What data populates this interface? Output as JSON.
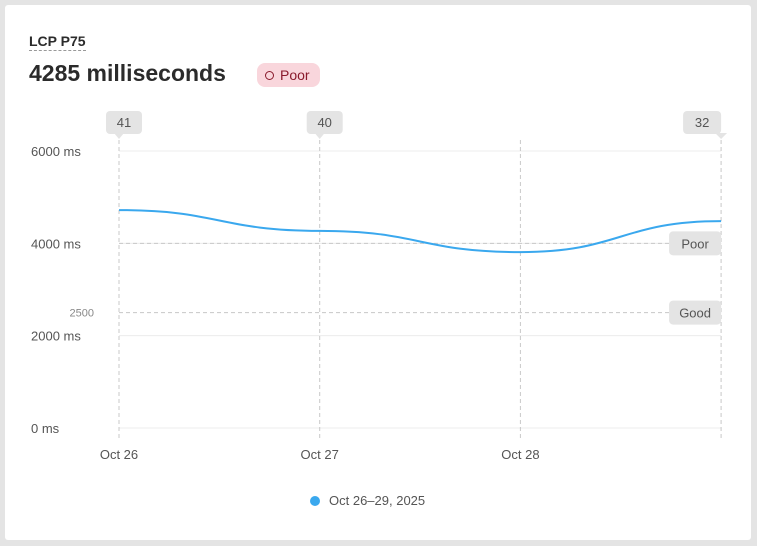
{
  "header": {
    "metric_label": "LCP P75",
    "value_text": "4285 milliseconds",
    "status_badge": "Poor",
    "status_color": "#8a1a2c",
    "status_bg": "#f9d6dc"
  },
  "chart_data": {
    "type": "line",
    "x": [
      "Oct 26",
      "Oct 27",
      "Oct 28",
      "Oct 29"
    ],
    "x_tick_labels": [
      "Oct 26",
      "Oct 27",
      "Oct 28"
    ],
    "series": [
      {
        "name": "Oct 26–29, 2025",
        "values": [
          4720,
          4270,
          3810,
          4480
        ],
        "color": "#3aa8ee"
      }
    ],
    "ylim": [
      0,
      6000
    ],
    "y_ticks": [
      0,
      2000,
      4000,
      6000
    ],
    "y_tick_labels": [
      "0 ms",
      "2000 ms",
      "4000 ms",
      "6000 ms"
    ],
    "grid": true,
    "thresholds": [
      {
        "label": "Poor",
        "value": 4000
      },
      {
        "label": "Good",
        "value": 2500,
        "tick_label": "2500"
      }
    ],
    "sample_counts": [
      {
        "x": "Oct 26",
        "label": "41"
      },
      {
        "x": "Oct 27",
        "label": "40"
      },
      {
        "x": "Oct 29",
        "label": "32"
      }
    ],
    "legend": "bottom"
  }
}
